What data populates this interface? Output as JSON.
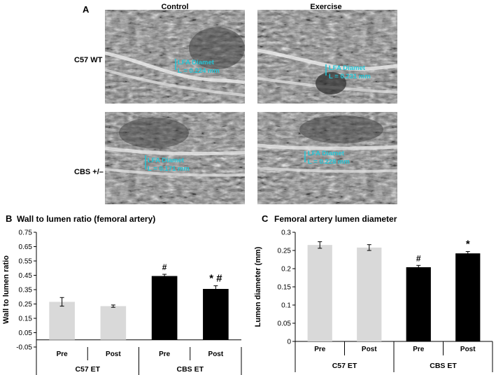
{
  "panel_a": {
    "letter": "A",
    "columns": [
      "Control",
      "Exercise"
    ],
    "rows": [
      "C57 WT",
      "CBS +/–"
    ],
    "images": [
      {
        "label": "LFA Diamet",
        "value": "L = 0.224 mm"
      },
      {
        "label": "LFA Diamet",
        "value": "L = 0.231 mm"
      },
      {
        "label": "LFA Diamet",
        "value": "L = 0.171 mm"
      },
      {
        "label": "LFA Diamet",
        "value": "L = 0.228 mm"
      }
    ]
  },
  "chart_data": [
    {
      "type": "bar",
      "panel_letter": "B",
      "title": "Wall to lumen ratio (femoral artery)",
      "ylabel": "Wall to lumen ratio",
      "xlabel": "",
      "ylim": [
        -0.05,
        0.75
      ],
      "yticks": [
        "-0.05",
        "0.05",
        "0.15",
        "0.25",
        "0.35",
        "0.45",
        "0.55",
        "0.65",
        "0.75"
      ],
      "categories": [
        "Pre",
        "Post",
        "Pre",
        "Post"
      ],
      "groups": [
        "C57 ET",
        "CBS ET"
      ],
      "values": [
        0.265,
        0.235,
        0.445,
        0.355
      ],
      "errors": [
        0.03,
        0.008,
        0.012,
        0.022
      ],
      "colors": [
        "#d9d9d9",
        "#d9d9d9",
        "#000000",
        "#000000"
      ],
      "annotations": [
        "",
        "",
        "#",
        "*#"
      ],
      "grid": false
    },
    {
      "type": "bar",
      "panel_letter": "C",
      "title": "Femoral artery lumen diameter",
      "ylabel": "Lumen diameter (mm)",
      "xlabel": "",
      "ylim": [
        0,
        0.3
      ],
      "yticks": [
        "0",
        "0.05",
        "0.1",
        "0.15",
        "0.2",
        "0.25",
        "0.3"
      ],
      "categories": [
        "Pre",
        "Post",
        "Pre",
        "Post"
      ],
      "groups": [
        "C57 ET",
        "CBS ET"
      ],
      "values": [
        0.265,
        0.258,
        0.204,
        0.242
      ],
      "errors": [
        0.009,
        0.008,
        0.005,
        0.005
      ],
      "colors": [
        "#d9d9d9",
        "#d9d9d9",
        "#000000",
        "#000000"
      ],
      "annotations": [
        "",
        "",
        "#",
        "*"
      ],
      "grid": false
    }
  ]
}
